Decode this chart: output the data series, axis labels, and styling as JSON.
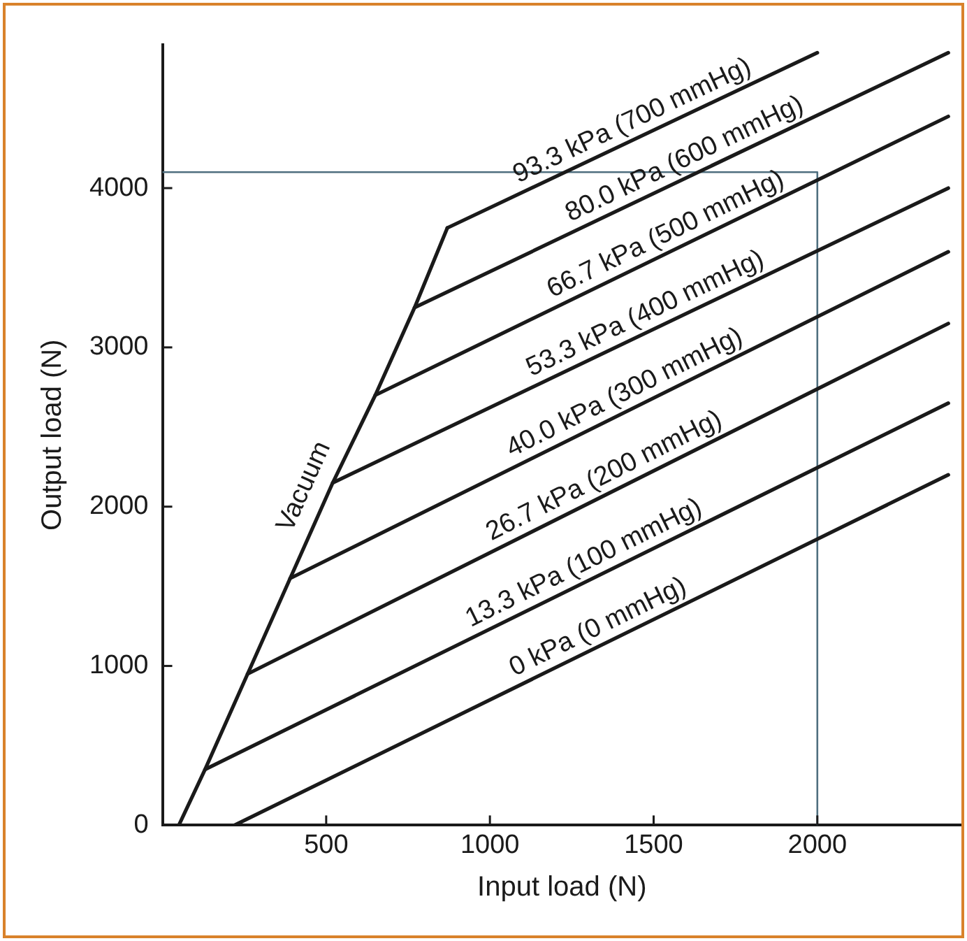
{
  "chart_data": {
    "type": "line",
    "xlabel": "Input load (N)",
    "ylabel": "Output load (N)",
    "xlim": [
      0,
      2440
    ],
    "ylim": [
      0,
      4900
    ],
    "xticks": [
      500,
      1000,
      1500,
      2000
    ],
    "yticks": [
      0,
      1000,
      2000,
      3000,
      4000
    ],
    "grid": false,
    "legend": false,
    "marker": "none",
    "line_style": "solid",
    "series": [
      {
        "name": "Vacuum",
        "color": "#1a1a1a",
        "x": [
          50,
          130,
          260,
          390,
          520,
          650,
          770,
          870
        ],
        "values": [
          0,
          350,
          950,
          1550,
          2150,
          2700,
          3250,
          3750
        ]
      },
      {
        "name": "0 kPa (0 mmHg)",
        "color": "#1a1a1a",
        "x": [
          220,
          2400
        ],
        "values": [
          0,
          2200
        ]
      },
      {
        "name": "13.3 kPa (100 mmHg)",
        "color": "#1a1a1a",
        "x": [
          130,
          2400
        ],
        "values": [
          350,
          2650
        ]
      },
      {
        "name": "26.7 kPa (200 mmHg)",
        "color": "#1a1a1a",
        "x": [
          260,
          2400
        ],
        "values": [
          950,
          3150
        ]
      },
      {
        "name": "40.0 kPa (300 mmHg)",
        "color": "#1a1a1a",
        "x": [
          390,
          2400
        ],
        "values": [
          1550,
          3600
        ]
      },
      {
        "name": "53.3 kPa (400 mmHg)",
        "color": "#1a1a1a",
        "x": [
          520,
          2400
        ],
        "values": [
          2150,
          4000
        ]
      },
      {
        "name": "66.7 kPa (500 mmHg)",
        "color": "#1a1a1a",
        "x": [
          650,
          2400
        ],
        "values": [
          2700,
          4450
        ]
      },
      {
        "name": "80.0 kPa (600 mmHg)",
        "color": "#1a1a1a",
        "x": [
          770,
          2400
        ],
        "values": [
          3250,
          4850
        ]
      },
      {
        "name": "93.3 kPa (700 mmHg)",
        "color": "#1a1a1a",
        "x": [
          870,
          2000
        ],
        "values": [
          3750,
          4850
        ]
      },
      {
        "color": "#4f6f7f",
        "x": [
          0,
          2000,
          2000
        ],
        "values": [
          4100,
          4100,
          0
        ]
      }
    ]
  }
}
